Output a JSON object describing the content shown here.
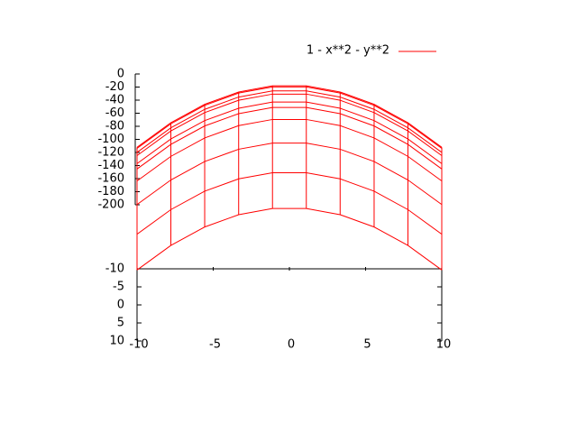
{
  "chart_data": {
    "type": "surface",
    "legend": "1 - x**2 - y**2",
    "color": "#ff0000",
    "x": [
      -10,
      -7.78,
      -5.56,
      -3.33,
      -1.11,
      1.11,
      3.33,
      5.56,
      7.78,
      10
    ],
    "y": [
      -10,
      -7.78,
      -5.56,
      -3.33,
      -1.11,
      1.11,
      3.33,
      5.56,
      7.78,
      10
    ],
    "z": [
      [
        -199,
        -159.5,
        -129.9,
        -110.1,
        -100.2,
        -100.2,
        -110.1,
        -129.9,
        -159.5,
        -199
      ],
      [
        -159.5,
        -120,
        -90.4,
        -70.6,
        -60.7,
        -60.7,
        -70.6,
        -90.4,
        -120,
        -159.5
      ],
      [
        -129.9,
        -90.4,
        -60.8,
        -41,
        -31.1,
        -31.1,
        -41,
        -60.8,
        -90.4,
        -129.9
      ],
      [
        -110.1,
        -70.6,
        -41,
        -21.2,
        -11.3,
        -11.3,
        -21.2,
        -41,
        -70.6,
        -110.1
      ],
      [
        -100.2,
        -60.7,
        -31.1,
        -11.3,
        -1.4,
        -1.4,
        -11.3,
        -31.1,
        -60.7,
        -100.2
      ],
      [
        -100.2,
        -60.7,
        -31.1,
        -11.3,
        -1.4,
        -1.4,
        -11.3,
        -31.1,
        -60.7,
        -100.2
      ],
      [
        -110.1,
        -70.6,
        -41,
        -21.2,
        -11.3,
        -11.3,
        -21.2,
        -41,
        -70.6,
        -110.1
      ],
      [
        -129.9,
        -90.4,
        -60.8,
        -41,
        -31.1,
        -31.1,
        -41,
        -60.8,
        -90.4,
        -129.9
      ],
      [
        -159.5,
        -120,
        -90.4,
        -70.6,
        -60.7,
        -60.7,
        -70.6,
        -90.4,
        -120,
        -159.5
      ],
      [
        -199,
        -159.5,
        -129.9,
        -110.1,
        -100.2,
        -100.2,
        -110.1,
        -129.9,
        -159.5,
        -199
      ]
    ],
    "xlim": [
      -10,
      10
    ],
    "xticks": [
      -10,
      -5,
      0,
      5,
      10
    ],
    "ylim": [
      -10,
      10
    ],
    "yticks": [
      -10,
      -5,
      0,
      5,
      10
    ],
    "zlim": [
      -200,
      0
    ],
    "zticks": [
      0,
      -20,
      -40,
      -60,
      -80,
      -100,
      -120,
      -140,
      -160,
      -180,
      -200
    ]
  }
}
